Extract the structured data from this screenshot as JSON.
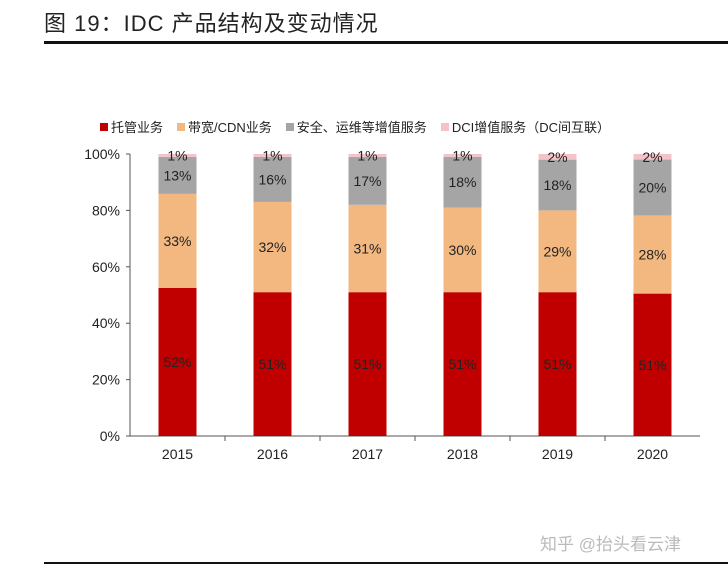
{
  "title": "图 19：IDC 产品结构及变动情况",
  "watermark": "知乎 @抬头看云津",
  "chart_data": {
    "type": "bar",
    "stacked": true,
    "title": "",
    "xlabel": "",
    "ylabel": "",
    "ylim": [
      0,
      100
    ],
    "yticks": [
      "0%",
      "20%",
      "40%",
      "60%",
      "80%",
      "100%"
    ],
    "categories": [
      "2015",
      "2016",
      "2017",
      "2018",
      "2019",
      "2020"
    ],
    "legend_position": "top",
    "grid": false,
    "series": [
      {
        "name": "托管业务",
        "color": "#c00000",
        "values": [
          52,
          51,
          51,
          51,
          51,
          51
        ]
      },
      {
        "name": "带宽/CDN业务",
        "color": "#f2b880",
        "values": [
          33,
          32,
          31,
          30,
          29,
          28
        ]
      },
      {
        "name": "安全、运维等增值服务",
        "color": "#a5a5a5",
        "values": [
          13,
          16,
          17,
          18,
          18,
          20
        ]
      },
      {
        "name": "DCI增值服务（DC间互联）",
        "color": "#f4c3ca",
        "values": [
          1,
          1,
          1,
          1,
          2,
          2
        ]
      }
    ]
  }
}
